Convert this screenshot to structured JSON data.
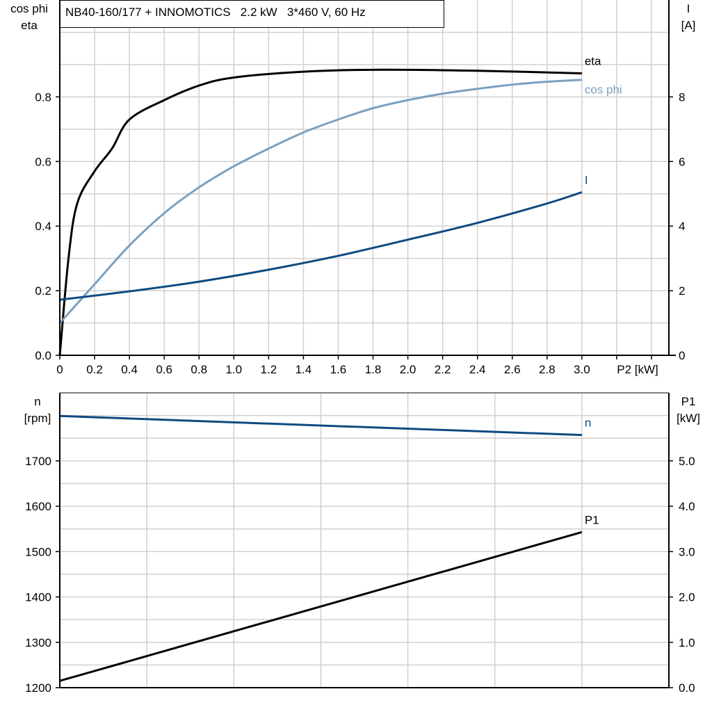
{
  "title": "NB40-160/177 + INNOMOTICS   2.2 kW   3*460 V, 60 Hz",
  "colors": {
    "eta": "#000000",
    "cos_phi": "#7aa0c0",
    "I": "#0e4a80",
    "n": "#0e4a80",
    "P1": "#000000",
    "grid": "#d0d0d0"
  },
  "chart_data": [
    {
      "type": "line",
      "xlabel": "P2 [kW]",
      "ylabel_left": [
        "cos phi",
        "eta"
      ],
      "ylabel_right": [
        "I",
        "[A]"
      ],
      "xlim": [
        0,
        3.5
      ],
      "ylim_left": [
        0,
        1.1
      ],
      "ylim_right": [
        0,
        11
      ],
      "xticks": [
        "0",
        "0.2",
        "0.4",
        "0.6",
        "0.8",
        "1.0",
        "1.2",
        "1.4",
        "1.6",
        "1.8",
        "2.0",
        "2.2",
        "2.4",
        "2.6",
        "2.8",
        "3.0"
      ],
      "yticks_left": [
        "0.0",
        "0.2",
        "0.4",
        "0.6",
        "0.8"
      ],
      "yticks_right": [
        "0",
        "2",
        "4",
        "6",
        "8"
      ],
      "grid": true,
      "series": [
        {
          "name": "eta",
          "axis": "left",
          "x": [
            0,
            0.05,
            0.1,
            0.2,
            0.3,
            0.4,
            0.6,
            0.8,
            1.0,
            1.4,
            1.8,
            2.4,
            3.0
          ],
          "y": [
            0,
            0.3,
            0.47,
            0.57,
            0.64,
            0.73,
            0.79,
            0.835,
            0.86,
            0.878,
            0.884,
            0.881,
            0.873
          ]
        },
        {
          "name": "cos phi",
          "axis": "left",
          "x": [
            0,
            0.2,
            0.4,
            0.6,
            0.8,
            1.0,
            1.2,
            1.4,
            1.6,
            1.8,
            2.0,
            2.2,
            2.4,
            2.6,
            2.8,
            3.0
          ],
          "y": [
            0.1,
            0.22,
            0.34,
            0.44,
            0.52,
            0.585,
            0.64,
            0.69,
            0.73,
            0.765,
            0.79,
            0.81,
            0.825,
            0.838,
            0.847,
            0.853
          ]
        },
        {
          "name": "I",
          "axis": "right",
          "x": [
            0,
            0.4,
            0.8,
            1.2,
            1.6,
            2.0,
            2.4,
            2.8,
            3.0
          ],
          "y": [
            1.72,
            1.98,
            2.28,
            2.65,
            3.08,
            3.58,
            4.1,
            4.7,
            5.05
          ]
        }
      ]
    },
    {
      "type": "line",
      "ylabel_left": [
        "n",
        "[rpm]"
      ],
      "ylabel_right": [
        "P1",
        "[kW]"
      ],
      "xlim": [
        0,
        3.5
      ],
      "ylim_left": [
        1200,
        1850
      ],
      "ylim_right": [
        0,
        6.5
      ],
      "yticks_left": [
        "1200",
        "1300",
        "1400",
        "1500",
        "1600",
        "1700"
      ],
      "yticks_right": [
        "0.0",
        "1.0",
        "2.0",
        "3.0",
        "4.0",
        "5.0"
      ],
      "grid": true,
      "series": [
        {
          "name": "n",
          "axis": "left",
          "x": [
            0,
            3.0
          ],
          "y": [
            1799,
            1757
          ]
        },
        {
          "name": "P1",
          "axis": "right",
          "x": [
            0,
            3.0
          ],
          "y": [
            0.15,
            3.43
          ]
        }
      ]
    }
  ]
}
